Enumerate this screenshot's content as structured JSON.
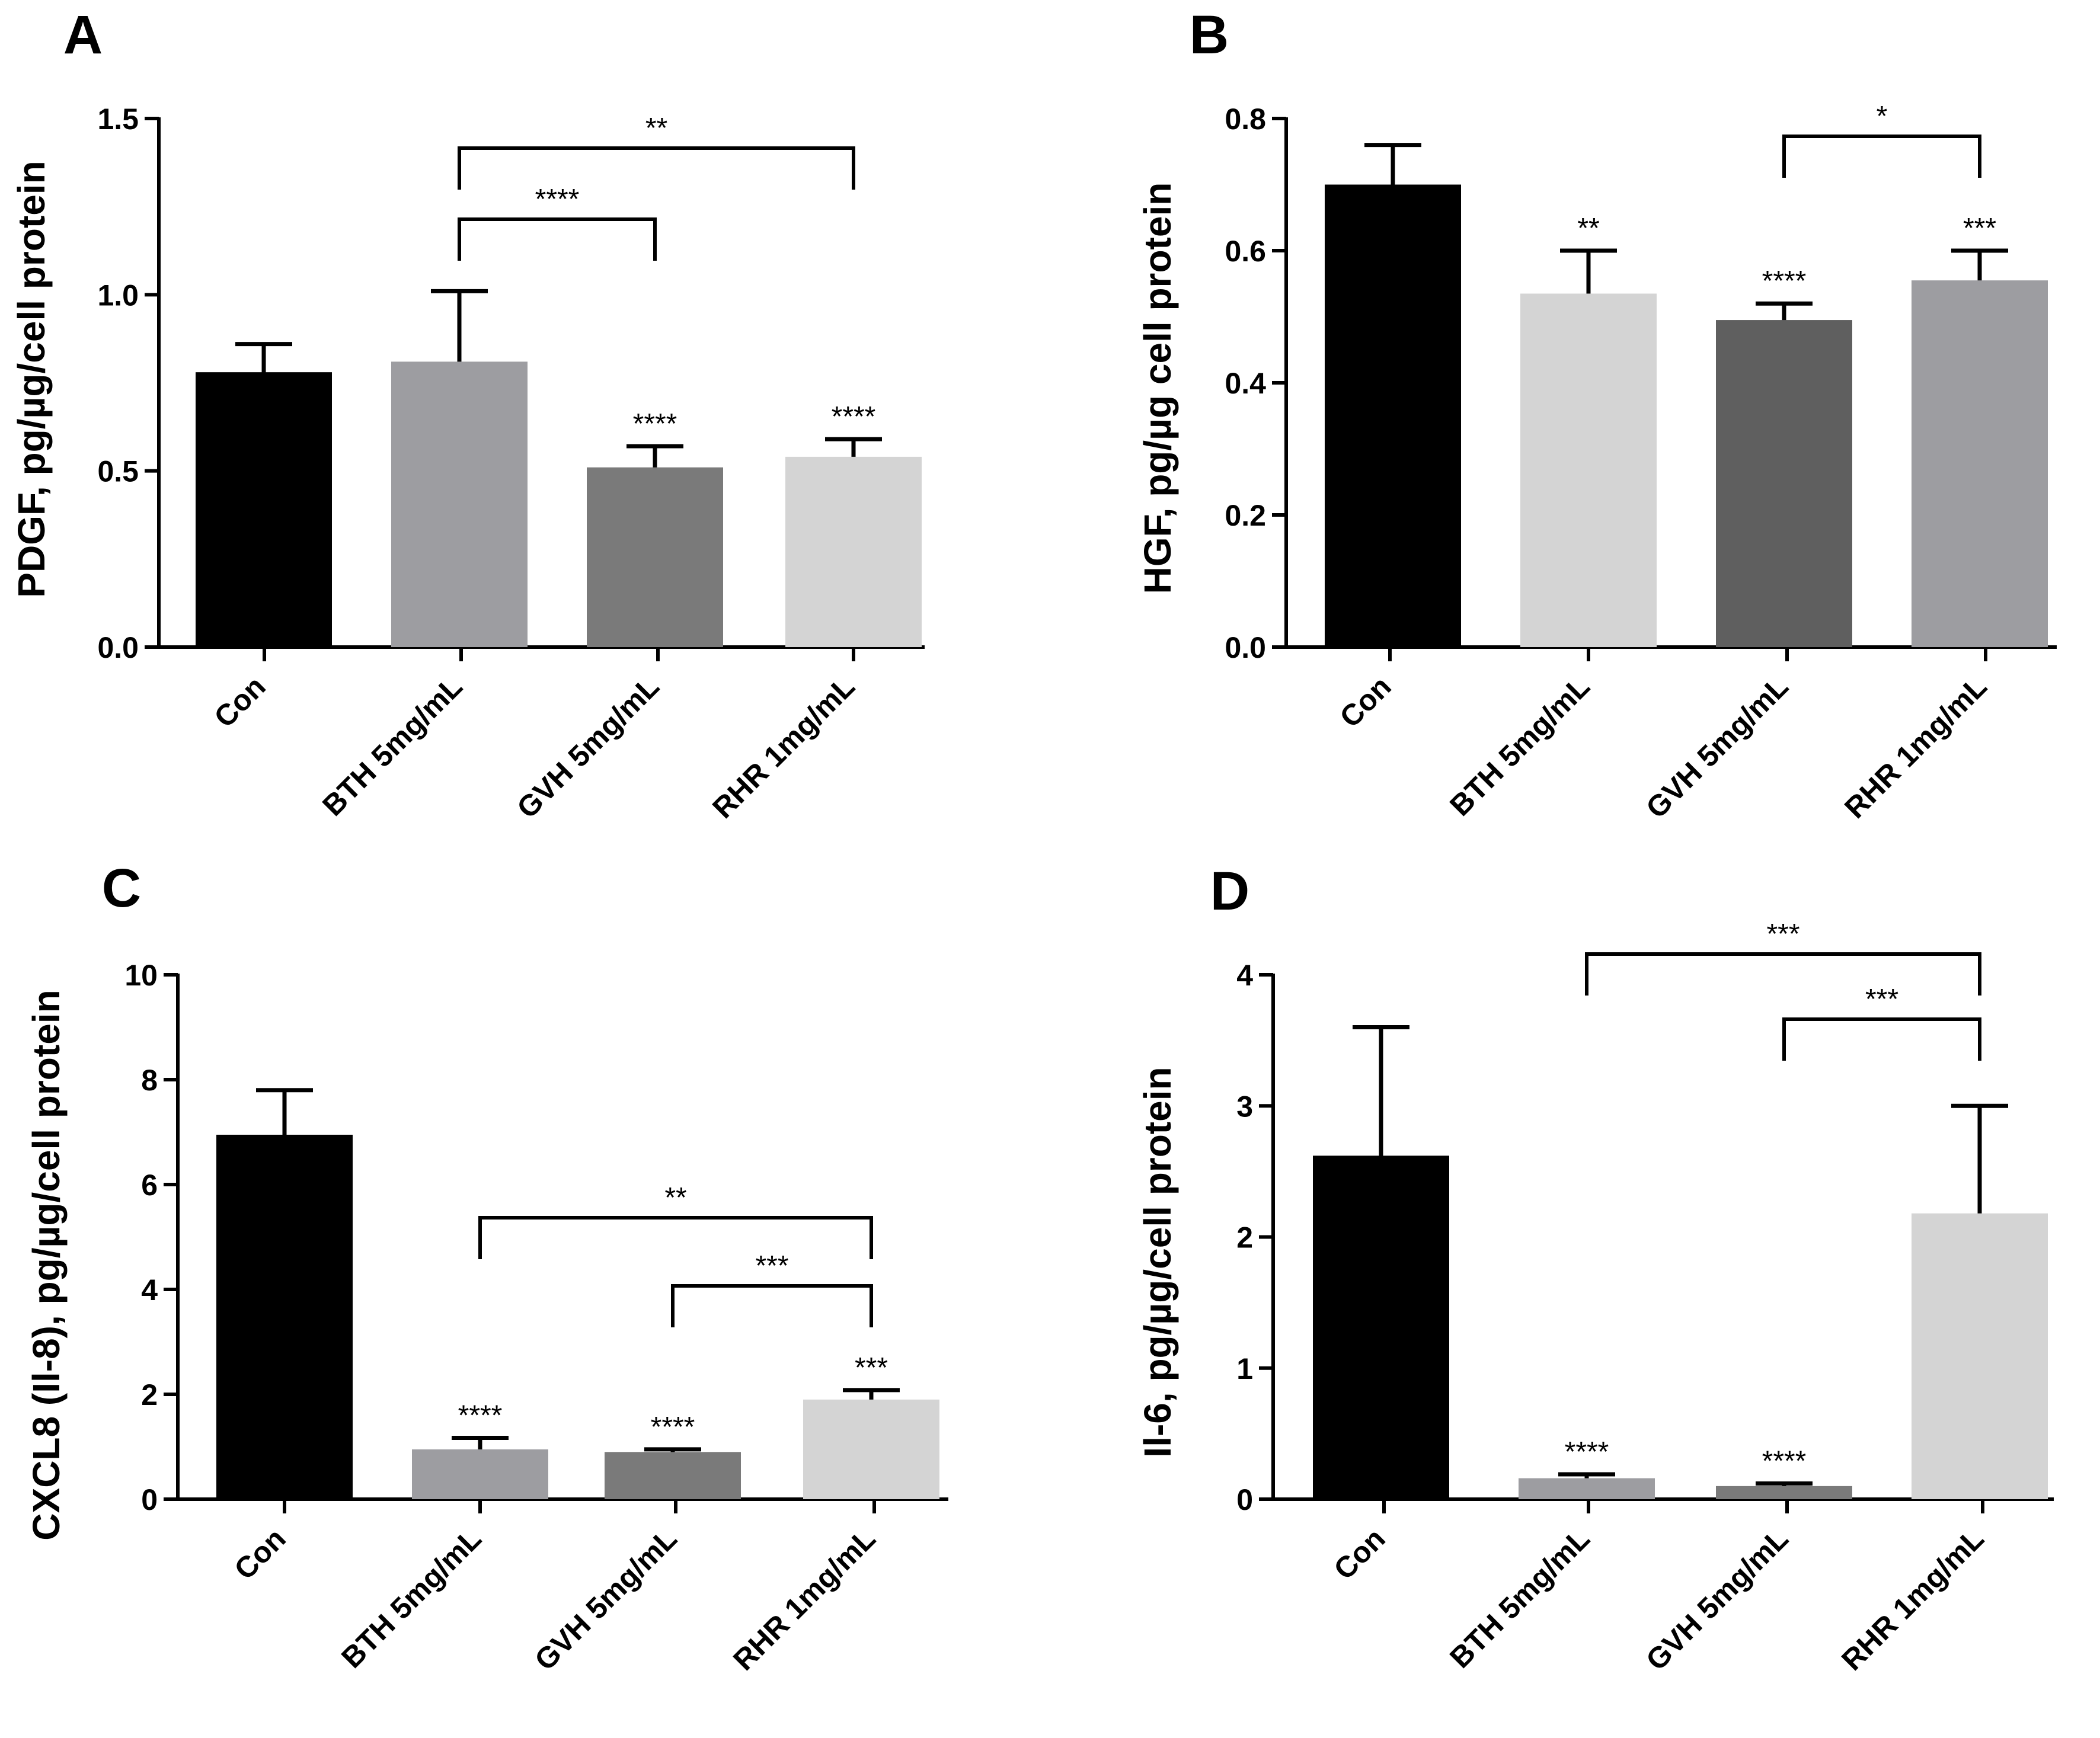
{
  "figure": {
    "panels": [
      "A",
      "B",
      "C",
      "D"
    ]
  },
  "chart_data": [
    {
      "panel": "A",
      "type": "bar",
      "title": "",
      "xlabel": "",
      "ylabel": "PDGF, pg/µg/cell protein",
      "ylim": [
        0,
        1.5
      ],
      "yticks": [
        0.0,
        0.5,
        1.0,
        1.5
      ],
      "ytick_labels": [
        "0.0",
        "0.5",
        "1.0",
        "1.5"
      ],
      "categories": [
        "Con",
        "BTH 5mg/mL",
        "GVH 5mg/mL",
        "RHR 1mg/mL"
      ],
      "values": [
        0.78,
        0.81,
        0.51,
        0.54
      ],
      "errors": [
        0.08,
        0.2,
        0.06,
        0.05
      ],
      "colors": [
        "#000000",
        "#9d9da1",
        "#7a7a7a",
        "#d4d4d4"
      ],
      "bar_stars": [
        "",
        "",
        "****",
        "****"
      ],
      "comparisons": [
        {
          "from": 1,
          "to": 2,
          "label": "****"
        },
        {
          "from": 1,
          "to": 3,
          "label": "**"
        }
      ]
    },
    {
      "panel": "B",
      "type": "bar",
      "title": "",
      "xlabel": "",
      "ylabel": "HGF, pg/µg cell protein",
      "ylim": [
        0,
        0.8
      ],
      "yticks": [
        0.0,
        0.2,
        0.4,
        0.6,
        0.8
      ],
      "ytick_labels": [
        "0.0",
        "0.2",
        "0.4",
        "0.6",
        "0.8"
      ],
      "categories": [
        "Con",
        "BTH 5mg/mL",
        "GVH 5mg/mL",
        "RHR 1mg/mL"
      ],
      "values": [
        0.7,
        0.535,
        0.495,
        0.555
      ],
      "errors": [
        0.06,
        0.065,
        0.025,
        0.045
      ],
      "colors": [
        "#000000",
        "#d4d4d4",
        "#5f5f5f",
        "#9d9da1"
      ],
      "bar_stars": [
        "",
        "**",
        "****",
        "***"
      ],
      "comparisons": [
        {
          "from": 2,
          "to": 3,
          "label": "*"
        }
      ]
    },
    {
      "panel": "C",
      "type": "bar",
      "title": "",
      "xlabel": "",
      "ylabel": "CXCL8 (Il-8), pg/µg/cell protein",
      "ylim": [
        0,
        10
      ],
      "yticks": [
        0,
        2,
        4,
        6,
        8,
        10
      ],
      "ytick_labels": [
        "0",
        "2",
        "4",
        "6",
        "8",
        "10"
      ],
      "categories": [
        "Con",
        "BTH 5mg/mL",
        "GVH 5mg/mL",
        "RHR 1mg/mL"
      ],
      "values": [
        6.95,
        0.95,
        0.9,
        1.9
      ],
      "errors": [
        0.85,
        0.22,
        0.05,
        0.18
      ],
      "colors": [
        "#000000",
        "#9d9da1",
        "#7a7a7a",
        "#d4d4d4"
      ],
      "bar_stars": [
        "",
        "****",
        "****",
        "***"
      ],
      "comparisons": [
        {
          "from": 2,
          "to": 3,
          "label": "***"
        },
        {
          "from": 1,
          "to": 3,
          "label": "**"
        }
      ]
    },
    {
      "panel": "D",
      "type": "bar",
      "title": "",
      "xlabel": "",
      "ylabel": "Il-6, pg/µg/cell protein",
      "ylim": [
        0,
        4
      ],
      "yticks": [
        0,
        1,
        2,
        3,
        4
      ],
      "ytick_labels": [
        "0",
        "1",
        "2",
        "3",
        "4"
      ],
      "categories": [
        "Con",
        "BTH 5mg/mL",
        "GVH 5mg/mL",
        "RHR 1mg/mL"
      ],
      "values": [
        2.62,
        0.16,
        0.1,
        2.18
      ],
      "errors": [
        0.98,
        0.03,
        0.02,
        0.82
      ],
      "colors": [
        "#000000",
        "#9d9da1",
        "#7a7a7a",
        "#d4d4d4"
      ],
      "bar_stars": [
        "",
        "****",
        "****",
        ""
      ],
      "comparisons": [
        {
          "from": 2,
          "to": 3,
          "label": "***"
        },
        {
          "from": 1,
          "to": 3,
          "label": "***"
        }
      ]
    }
  ]
}
